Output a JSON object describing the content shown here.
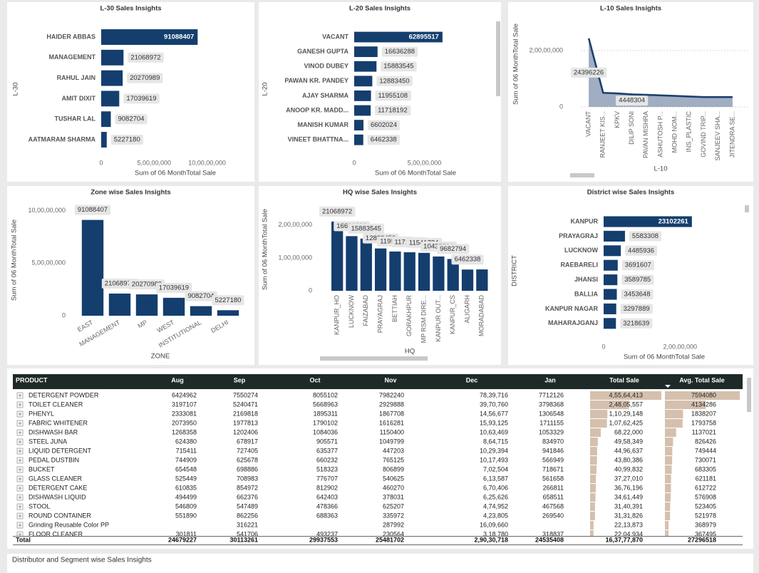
{
  "chart_data": [
    {
      "type": "hbar",
      "title": "L-30 Sales Insights",
      "x_label": "Sum of 06 MonthTotal Sale",
      "y_label": "L-30",
      "categories": [
        "HAIDER ABBAS",
        "MANAGEMENT",
        "RAHUL JAIN",
        "AMIT DIXIT",
        "TUSHAR LAL",
        "AATMARAM SHARMA"
      ],
      "values": [
        91088407,
        21068972,
        20270989,
        17039619,
        9082704,
        5227180
      ],
      "color": "#143e6e",
      "xlim": [
        0,
        140000000
      ],
      "xticks": [
        0,
        {
          "value": 50000000,
          "label": "5,00,00,000"
        },
        {
          "value": 100000000,
          "label": "10,00,00,000"
        }
      ],
      "grid": false
    },
    {
      "type": "hbar",
      "title": "L-20 Sales Insights",
      "x_label": "Sum of 06 MonthTotal Sale",
      "y_label": "L-20",
      "categories": [
        "VACANT",
        "GANESH GUPTA",
        "VINOD DUBEY",
        "PAWAN KR. PANDEY",
        "AJAY SHARMA",
        "ANOOP KR. MADD...",
        "MANISH KUMAR",
        "VINEET BHATTNA..."
      ],
      "values": [
        62895517,
        16636288,
        15883545,
        12883450,
        11955108,
        11718192,
        6602024,
        6462338
      ],
      "color": "#143e6e",
      "xlim": [
        0,
        98000000
      ],
      "xticks": [
        0,
        {
          "value": 50000000,
          "label": "5,00,00,000"
        }
      ],
      "grid": false
    },
    {
      "type": "area",
      "title": "L-10 Sales Insights",
      "x_label": "L-10",
      "y_label": "Sum of 06 MonthTotal Sale",
      "categories": [
        "VACANT",
        "RANJEET KIS...",
        "KPKV",
        "DILIP SONI",
        "PAVAN MISHRA",
        "ASHUTOSH P...",
        "MOHD NOM...",
        "INS_PLASTIC",
        "GOVIND TRIP...",
        "SANJEEV SHA...",
        "JITENDRA SE..."
      ],
      "values": [
        24396226,
        5000000,
        4800000,
        4448304,
        4300000,
        4100000,
        3900000,
        3700000,
        3500000,
        3500000,
        3500000
      ],
      "value_labels": [
        "24396226",
        null,
        null,
        "4448304",
        null,
        null,
        null,
        null,
        null,
        null,
        null
      ],
      "color": "#1e3f6e",
      "ylim": [
        0,
        26600000
      ],
      "yticks": [
        0,
        {
          "value": 20000000,
          "label": "2,00,00,000"
        }
      ],
      "grid": true
    },
    {
      "type": "bar",
      "title": "Zone wise Sales Insights",
      "x_label": "ZONE",
      "y_label": "Sum of 06 MonthTotal Sale",
      "categories": [
        "EAST",
        "MANAGEMENT",
        "MP",
        "WEST",
        "INSTITUTIONAL",
        "DELHI"
      ],
      "values": [
        91088407,
        21068972,
        20270989,
        17039619,
        9082704,
        5227180
      ],
      "color": "#143e6e",
      "ylim": [
        0,
        103000000
      ],
      "yticks": [
        0,
        {
          "value": 50000000,
          "label": "5,00,00,000"
        },
        {
          "value": 100000000,
          "label": "10,00,00,000"
        }
      ],
      "grid": false
    },
    {
      "type": "bar",
      "title": "HQ wise Sales Insights",
      "x_label": "HQ",
      "y_label": "Sum of 06 MonthTotal Sale",
      "categories": [
        "KANPUR_HO",
        "LUCKNOW",
        "FAIZABAD",
        "PRAYAGRAJ",
        "BETTIAH",
        "GORAKHPUR",
        "MP RSM DIRE...",
        "KANPUR OUT...",
        "KANPUR_CS",
        "ALIGARH",
        "MORADABAD"
      ],
      "values": [
        21068972,
        16636288,
        15883545,
        12883450,
        11955108,
        11718192,
        11541784,
        10437594,
        9682794,
        6462338,
        6500000
      ],
      "value_labels": [
        "21068972",
        "16636288",
        "15883545",
        "12883450",
        "11955108",
        "11718192",
        "11541784",
        "10437594",
        "9682794",
        "6462338",
        null
      ],
      "color": "#143e6e",
      "ylim": [
        0,
        25600000
      ],
      "yticks": [
        0,
        {
          "value": 10000000,
          "label": "1,00,00,000"
        },
        {
          "value": 20000000,
          "label": "2,00,00,000"
        }
      ],
      "grid": false
    },
    {
      "type": "hbar",
      "title": "District wise Sales Insights",
      "x_label": "Sum of 06 MonthTotal Sale",
      "y_label": "DISTRICT",
      "categories": [
        "KANPUR",
        "PRAYAGRAJ",
        "LUCKNOW",
        "RAEBARELI",
        "JHANSI",
        "BALLIA",
        "KANPUR NAGAR",
        "MAHARAJGANJ"
      ],
      "values": [
        23102261,
        5583308,
        4485936,
        3691607,
        3589785,
        3453648,
        3297889,
        3218639
      ],
      "color": "#143e6e",
      "xlim": [
        0,
        36000000
      ],
      "xticks": [
        0,
        {
          "value": 20000000,
          "label": "2,00,00,000"
        }
      ],
      "grid": false
    }
  ],
  "table": {
    "columns": [
      "PRODUCT",
      "Aug",
      "Sep",
      "Oct",
      "Nov",
      "Dec",
      "Jan",
      "Total Sale",
      "Avg. Total Sale"
    ],
    "rows": [
      [
        "DETERGENT POWDER",
        "6424962",
        "7550274",
        "8055102",
        "7982240",
        "78,39,716",
        "7712126",
        "4,55,64,413",
        "7594080"
      ],
      [
        "TOILET CLEANER",
        "3197107",
        "5240471",
        "5668963",
        "2929888",
        "39,70,760",
        "3798368",
        "2,48,05,557",
        "4134286"
      ],
      [
        "PHENYL",
        "2333081",
        "2169818",
        "1895311",
        "1867708",
        "14,56,677",
        "1306548",
        "1,10,29,148",
        "1838207"
      ],
      [
        "FABRIC WHITENER",
        "2073950",
        "1977813",
        "1790102",
        "1616281",
        "15,93,125",
        "1711155",
        "1,07,62,425",
        "1793758"
      ],
      [
        "DISHWASH BAR",
        "1268358",
        "1202406",
        "1084036",
        "1150400",
        "10,63,469",
        "1053329",
        "68,22,000",
        "1137021"
      ],
      [
        "STEEL JUNA",
        "624380",
        "678917",
        "905571",
        "1049799",
        "8,64,715",
        "834970",
        "49,58,349",
        "826426"
      ],
      [
        "LIQUID DETERGENT",
        "715411",
        "727405",
        "635377",
        "447203",
        "10,29,394",
        "941846",
        "44,96,637",
        "749444"
      ],
      [
        "PEDAL DUSTBIN",
        "744909",
        "625678",
        "660232",
        "765125",
        "10,17,493",
        "566949",
        "43,80,386",
        "730071"
      ],
      [
        "BUCKET",
        "654548",
        "698886",
        "518323",
        "806899",
        "7,02,504",
        "718671",
        "40,99,832",
        "683305"
      ],
      [
        "GLASS CLEANER",
        "525449",
        "708983",
        "776707",
        "540625",
        "6,13,587",
        "561658",
        "37,27,010",
        "621181"
      ],
      [
        "DETERGENT CAKE",
        "610835",
        "854972",
        "812902",
        "460270",
        "6,70,406",
        "266811",
        "36,76,196",
        "612722"
      ],
      [
        "DISHWASH LIQUID",
        "494499",
        "662376",
        "642403",
        "378031",
        "6,25,626",
        "658511",
        "34,61,449",
        "576908"
      ],
      [
        "STOOL",
        "546809",
        "547489",
        "478366",
        "625207",
        "4,74,952",
        "467568",
        "31,40,391",
        "523405"
      ],
      [
        "ROUND CONTAINER",
        "551890",
        "862256",
        "688363",
        "335972",
        "4,23,805",
        "269540",
        "31,31,826",
        "521978"
      ],
      [
        "Grinding Reusable Color PP",
        null,
        "316221",
        null,
        "287992",
        "16,09,660",
        null,
        "22,13,873",
        "368979"
      ],
      [
        "FLOOR CLEANER",
        "301811",
        "541706",
        "493237",
        "230564",
        "3,18,780",
        "318837",
        "22,04,934",
        "367495"
      ]
    ],
    "total": [
      "Total",
      "24679227",
      "30113261",
      "29937553",
      "25481702",
      "2,90,30,718",
      "24535408",
      "16,37,77,870",
      "27296518"
    ]
  },
  "footer_title": "Distributor and Segment wise Sales Insights"
}
